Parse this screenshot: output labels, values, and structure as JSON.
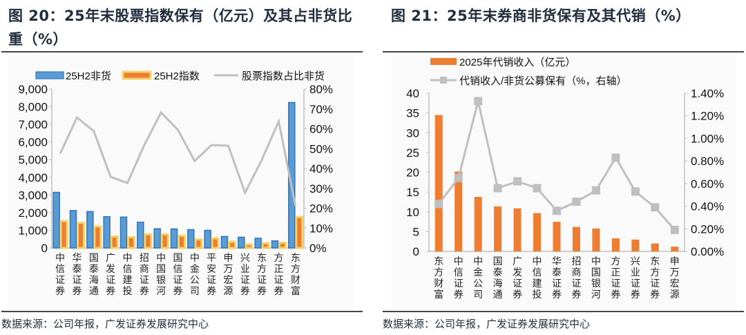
{
  "chart_data": [
    {
      "type": "bar",
      "title": "图 20：25年末股票指数保有（亿元）及其占非货比重（%）",
      "categories": [
        "中信证券",
        "华泰证券",
        "国泰海通",
        "广发证券",
        "中信建投",
        "招商证券",
        "中国银河",
        "国信证券",
        "中金公司",
        "平安证券",
        "申万宏源",
        "兴业证券",
        "东方证券",
        "方正证券",
        "东方财富"
      ],
      "series": [
        {
          "name": "25H2非货",
          "axis": "left",
          "kind": "bar",
          "color": "#3d85c6",
          "values": [
            3150,
            2120,
            2060,
            1770,
            1750,
            1460,
            1090,
            1080,
            1040,
            1000,
            650,
            610,
            550,
            400,
            8240
          ]
        },
        {
          "name": "25H2指数",
          "axis": "left",
          "kind": "bar",
          "color": "#ed7d31",
          "values": [
            1520,
            1420,
            1220,
            650,
            610,
            770,
            770,
            690,
            480,
            550,
            350,
            200,
            270,
            290,
            1750
          ]
        },
        {
          "name": "股票指数占比非货",
          "axis": "right",
          "kind": "line",
          "color": "#bfbfbf",
          "values": [
            47.6,
            65.7,
            58.8,
            35.8,
            32.7,
            51.8,
            68.2,
            59.5,
            43.8,
            51.8,
            51.5,
            27.8,
            44.5,
            63.7,
            21.0
          ]
        }
      ],
      "ylim": [
        0,
        9000
      ],
      "y_ticks": [
        "0",
        "1,000",
        "2,000",
        "3,000",
        "4,000",
        "5,000",
        "6,000",
        "7,000",
        "8,000",
        "9,000"
      ],
      "y2lim": [
        0,
        80
      ],
      "y2_ticks": [
        "0%",
        "10%",
        "20%",
        "30%",
        "40%",
        "50%",
        "60%",
        "70%",
        "80%"
      ],
      "legend": "top",
      "grid": false,
      "source": "数据来源：公司年报，广发证券发展研究中心"
    },
    {
      "type": "bar",
      "title": "图 21：25年末券商非货保有及其代销（%）",
      "categories": [
        "东方财富",
        "中信证券",
        "中金公司",
        "国泰海通",
        "广发证券",
        "中信建投",
        "华泰证券",
        "招商证券",
        "中国银河",
        "方正证券",
        "兴业证券",
        "东方证券",
        "申万宏源"
      ],
      "series": [
        {
          "name": "2025年代销收入（亿元）",
          "axis": "left",
          "kind": "bar",
          "color": "#ed7d31",
          "values": [
            34.5,
            20.2,
            13.8,
            11.4,
            10.9,
            9.7,
            7.5,
            6.2,
            5.8,
            3.3,
            3.0,
            2.0,
            1.2
          ]
        },
        {
          "name": "代销收入/非货公募保有（%，右轴）",
          "axis": "right",
          "kind": "line",
          "color": "#bfbfbf",
          "values": [
            0.42,
            0.65,
            1.33,
            0.56,
            0.62,
            0.56,
            0.36,
            0.44,
            0.54,
            0.83,
            0.53,
            0.39,
            0.19
          ]
        }
      ],
      "ylim": [
        0,
        40
      ],
      "y_ticks": [
        "0",
        "5",
        "10",
        "15",
        "20",
        "25",
        "30",
        "35",
        "40"
      ],
      "y2lim": [
        0,
        1.4
      ],
      "y2_ticks": [
        "0.00%",
        "0.20%",
        "0.40%",
        "0.60%",
        "0.80%",
        "1.00%",
        "1.20%",
        "1.40%"
      ],
      "legend": "top-left",
      "grid": false,
      "source": "数据来源：公司年报，广发证券发展研究中心"
    }
  ]
}
